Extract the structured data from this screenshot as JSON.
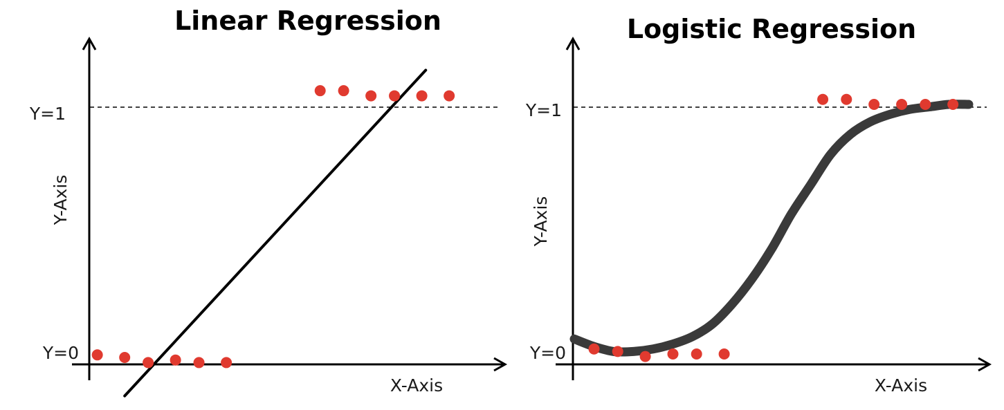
{
  "chart_data": [
    {
      "type": "scatter",
      "title": "Linear Regression",
      "xlabel": "X-Axis",
      "ylabel": "Y-Axis",
      "ytick_labels": [
        "Y=0",
        "Y=1"
      ],
      "ylim": [
        0,
        1
      ],
      "reference_line": {
        "y": 1,
        "style": "dashed"
      },
      "point_color": "#e03a2f",
      "line_color": "#000000",
      "points": [
        {
          "x": 0.01,
          "y": 0.01
        },
        {
          "x": 0.08,
          "y": 0.0
        },
        {
          "x": 0.14,
          "y": -0.02
        },
        {
          "x": 0.21,
          "y": -0.01
        },
        {
          "x": 0.27,
          "y": -0.02
        },
        {
          "x": 0.34,
          "y": -0.02
        },
        {
          "x": 0.58,
          "y": 1.04
        },
        {
          "x": 0.64,
          "y": 1.04
        },
        {
          "x": 0.71,
          "y": 1.02
        },
        {
          "x": 0.77,
          "y": 1.02
        },
        {
          "x": 0.84,
          "y": 1.02
        },
        {
          "x": 0.91,
          "y": 1.02
        }
      ],
      "fit": {
        "kind": "linear",
        "x": [
          0.08,
          0.85
        ],
        "y": [
          -0.15,
          1.12
        ]
      }
    },
    {
      "type": "scatter",
      "title": "Logistic Regression",
      "xlabel": "X-Axis",
      "ylabel": "Y-Axis",
      "ytick_labels": [
        "Y=0",
        "Y=1"
      ],
      "ylim": [
        0,
        1
      ],
      "reference_line": {
        "y": 1,
        "style": "dashed"
      },
      "point_color": "#e03a2f",
      "curve_color": "#3a3a3a",
      "points": [
        {
          "x": 0.05,
          "y": 0.02
        },
        {
          "x": 0.11,
          "y": 0.01
        },
        {
          "x": 0.18,
          "y": -0.01
        },
        {
          "x": 0.25,
          "y": 0.0
        },
        {
          "x": 0.31,
          "y": 0.0
        },
        {
          "x": 0.38,
          "y": 0.0
        },
        {
          "x": 0.63,
          "y": 1.02
        },
        {
          "x": 0.69,
          "y": 1.02
        },
        {
          "x": 0.76,
          "y": 1.0
        },
        {
          "x": 0.83,
          "y": 1.0
        },
        {
          "x": 0.89,
          "y": 1.0
        },
        {
          "x": 0.96,
          "y": 1.0
        }
      ],
      "fit": {
        "kind": "sigmoid",
        "x": [
          0.0,
          0.05,
          0.1,
          0.15,
          0.2,
          0.25,
          0.3,
          0.35,
          0.4,
          0.45,
          0.5,
          0.55,
          0.6,
          0.65,
          0.7,
          0.75,
          0.8,
          0.85,
          0.9,
          0.95,
          1.0
        ],
        "y": [
          0.06,
          0.03,
          0.01,
          0.01,
          0.02,
          0.04,
          0.07,
          0.12,
          0.2,
          0.3,
          0.42,
          0.56,
          0.68,
          0.8,
          0.88,
          0.93,
          0.96,
          0.98,
          0.99,
          1.0,
          1.0
        ]
      }
    }
  ]
}
